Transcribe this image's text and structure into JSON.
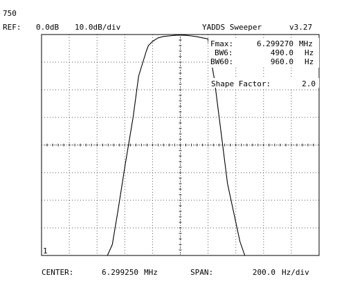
{
  "header": {
    "title": "750",
    "ref_label": "REF:",
    "ref_value": "0.0dB",
    "scale": "10.0dB/div",
    "app_name": "YADDS Sweeper",
    "version": "v3.27"
  },
  "readout": {
    "fmax_label": "Fmax:",
    "fmax_value": "6.299270",
    "fmax_unit": "MHz",
    "bw6_label": "BW6:",
    "bw6_value": "490.0",
    "bw6_unit": "Hz",
    "bw60_label": "BW60:",
    "bw60_value": "960.0",
    "bw60_unit": "Hz",
    "shape_label": "Shape Factor:",
    "shape_value": "2.0"
  },
  "footer": {
    "center_label": "CENTER:",
    "center_value": "6.299250",
    "center_unit": "MHz",
    "span_label": "SPAN:",
    "span_value": "200.0",
    "span_unit": "Hz/div"
  },
  "marker_label": "1",
  "chart_data": {
    "type": "line",
    "x_unit": "Hz offset from center",
    "y_unit": "dB",
    "xlim": [
      -1000,
      1000
    ],
    "ylim": [
      -80,
      0
    ],
    "grid": true,
    "x_divisions": 10,
    "y_divisions": 8,
    "series": [
      {
        "x": [
          -1000,
          -525,
          -490,
          -450,
          -400,
          -340,
          -300,
          -245,
          -230,
          -200,
          -160,
          -120,
          -80,
          -40,
          0,
          40,
          80,
          120,
          160,
          200,
          210,
          245,
          260,
          300,
          340,
          400,
          430,
          465,
          490,
          520,
          1000
        ],
        "y": [
          -80,
          -80,
          -76,
          -64,
          -48,
          -30,
          -15,
          -6,
          -4,
          -2.5,
          -1.2,
          -0.7,
          -0.5,
          -0.3,
          -0.2,
          -0.3,
          -0.5,
          -0.8,
          -1.2,
          -1.6,
          -6,
          -16,
          -22,
          -38,
          -54,
          -68,
          -75,
          -80,
          -80,
          -80,
          -80
        ]
      }
    ]
  }
}
